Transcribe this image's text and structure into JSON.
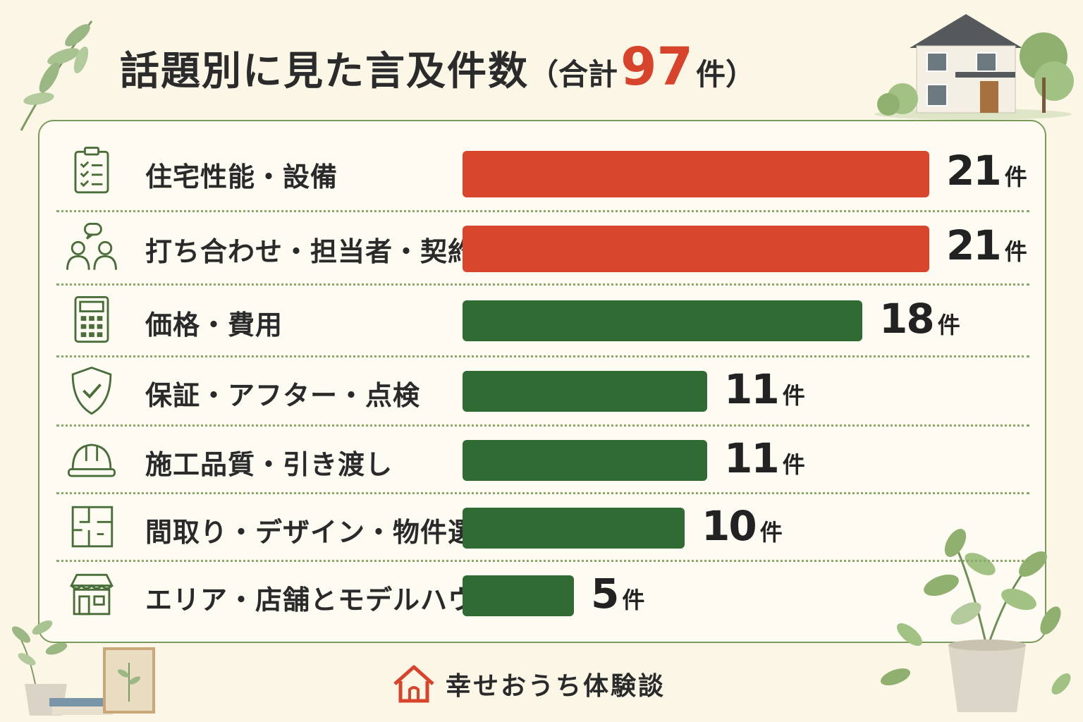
{
  "title": {
    "main": "話題別に見た言及件数",
    "paren_open": "（合計",
    "total": "97",
    "paren_close": "件）"
  },
  "unit": "件",
  "footer": {
    "brand": "幸せおうち体験談"
  },
  "colors": {
    "top": "#d8472b",
    "other": "#2f6b33",
    "accent": "#d8432b",
    "line": "#7a9a5a"
  },
  "chart_data": {
    "type": "bar",
    "orientation": "horizontal",
    "categories": [
      "住宅性能・設備",
      "打ち合わせ・担当者・契約",
      "価格・費用",
      "保証・アフター・点検",
      "施工品質・引き渡し",
      "間取り・デザイン・物件選び",
      "エリア・店舗とモデルハウス"
    ],
    "values": [
      21,
      21,
      18,
      11,
      11,
      10,
      5
    ],
    "icons": [
      "clipboard-icon",
      "people-chat-icon",
      "calculator-icon",
      "shield-check-icon",
      "hardhat-icon",
      "floorplan-icon",
      "shop-icon"
    ],
    "bar_colors": [
      "#d8472b",
      "#d8472b",
      "#2f6b33",
      "#2f6b33",
      "#2f6b33",
      "#2f6b33",
      "#2f6b33"
    ],
    "xlim": [
      0,
      21
    ]
  }
}
